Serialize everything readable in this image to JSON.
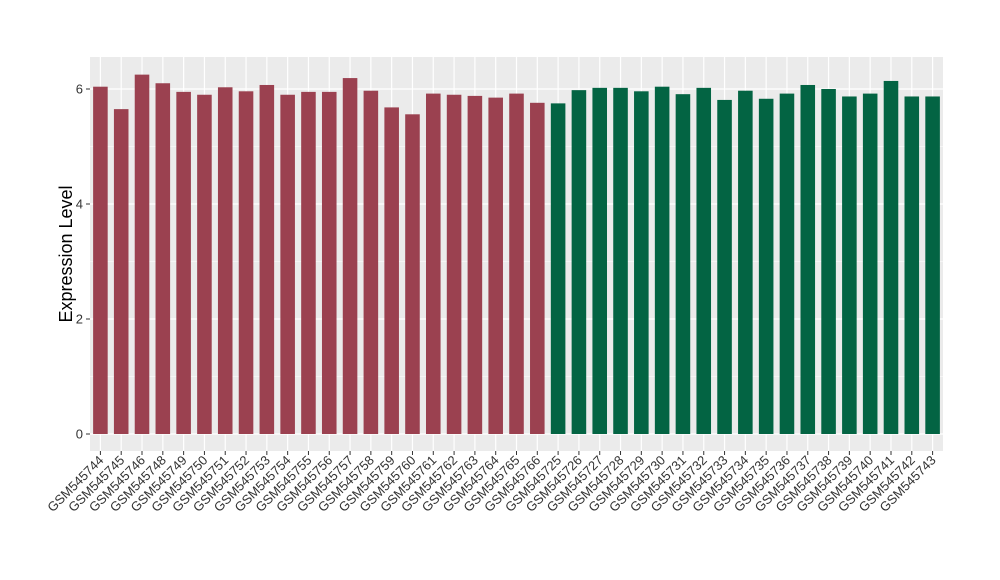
{
  "chart_data": {
    "type": "bar",
    "ylabel": "Expression Level",
    "xlabel": "",
    "ylim": [
      0,
      6.55
    ],
    "yticks": [
      0,
      2,
      4,
      6
    ],
    "grid": true,
    "legend": "none",
    "colors": {
      "group_a": "#9b4150",
      "group_b": "#036443",
      "panel": "#ebebeb",
      "grid": "#ffffff"
    },
    "categories": [
      "GSM545744",
      "GSM545745",
      "GSM545746",
      "GSM545748",
      "GSM545749",
      "GSM545750",
      "GSM545751",
      "GSM545752",
      "GSM545753",
      "GSM545754",
      "GSM545755",
      "GSM545756",
      "GSM545757",
      "GSM545758",
      "GSM545759",
      "GSM545760",
      "GSM545761",
      "GSM545762",
      "GSM545763",
      "GSM545764",
      "GSM545765",
      "GSM545766",
      "GSM545725",
      "GSM545726",
      "GSM545727",
      "GSM545728",
      "GSM545729",
      "GSM545730",
      "GSM545731",
      "GSM545732",
      "GSM545733",
      "GSM545734",
      "GSM545735",
      "GSM545736",
      "GSM545737",
      "GSM545738",
      "GSM545739",
      "GSM545740",
      "GSM545741",
      "GSM545742",
      "GSM545743"
    ],
    "values": [
      6.04,
      5.65,
      6.25,
      6.1,
      5.95,
      5.9,
      6.03,
      5.96,
      6.07,
      5.9,
      5.95,
      5.95,
      6.19,
      5.97,
      5.68,
      5.56,
      5.92,
      5.9,
      5.88,
      5.85,
      5.92,
      5.76,
      5.75,
      5.98,
      6.02,
      6.02,
      5.96,
      6.04,
      5.91,
      6.02,
      5.81,
      5.97,
      5.83,
      5.92,
      6.07,
      6.0,
      5.87,
      5.92,
      6.14,
      5.87,
      5.87
    ],
    "groups": [
      "a",
      "a",
      "a",
      "a",
      "a",
      "a",
      "a",
      "a",
      "a",
      "a",
      "a",
      "a",
      "a",
      "a",
      "a",
      "a",
      "a",
      "a",
      "a",
      "a",
      "a",
      "a",
      "b",
      "b",
      "b",
      "b",
      "b",
      "b",
      "b",
      "b",
      "b",
      "b",
      "b",
      "b",
      "b",
      "b",
      "b",
      "b",
      "b",
      "b",
      "b"
    ]
  }
}
